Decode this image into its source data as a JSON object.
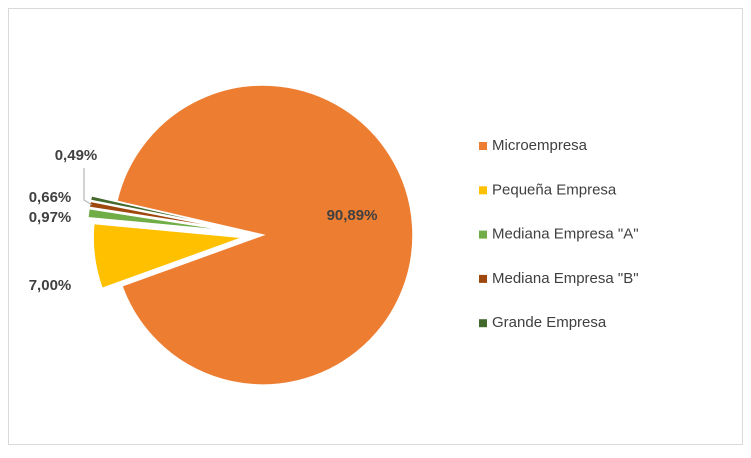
{
  "chart_data": {
    "type": "pie",
    "categories": [
      "Microempresa",
      "Pequeña Empresa",
      "Mediana Empresa \"A\"",
      "Mediana Empresa \"B\"",
      "Grande Empresa"
    ],
    "values": [
      90.89,
      7.0,
      0.97,
      0.66,
      0.49
    ],
    "value_labels": [
      "90,89%",
      "7,00%",
      "0,97%",
      "0,66%",
      "0,49%"
    ],
    "colors": [
      "#ed7d31",
      "#ffc000",
      "#70ad47",
      "#9e480e",
      "#43682b"
    ],
    "legend": "right"
  }
}
